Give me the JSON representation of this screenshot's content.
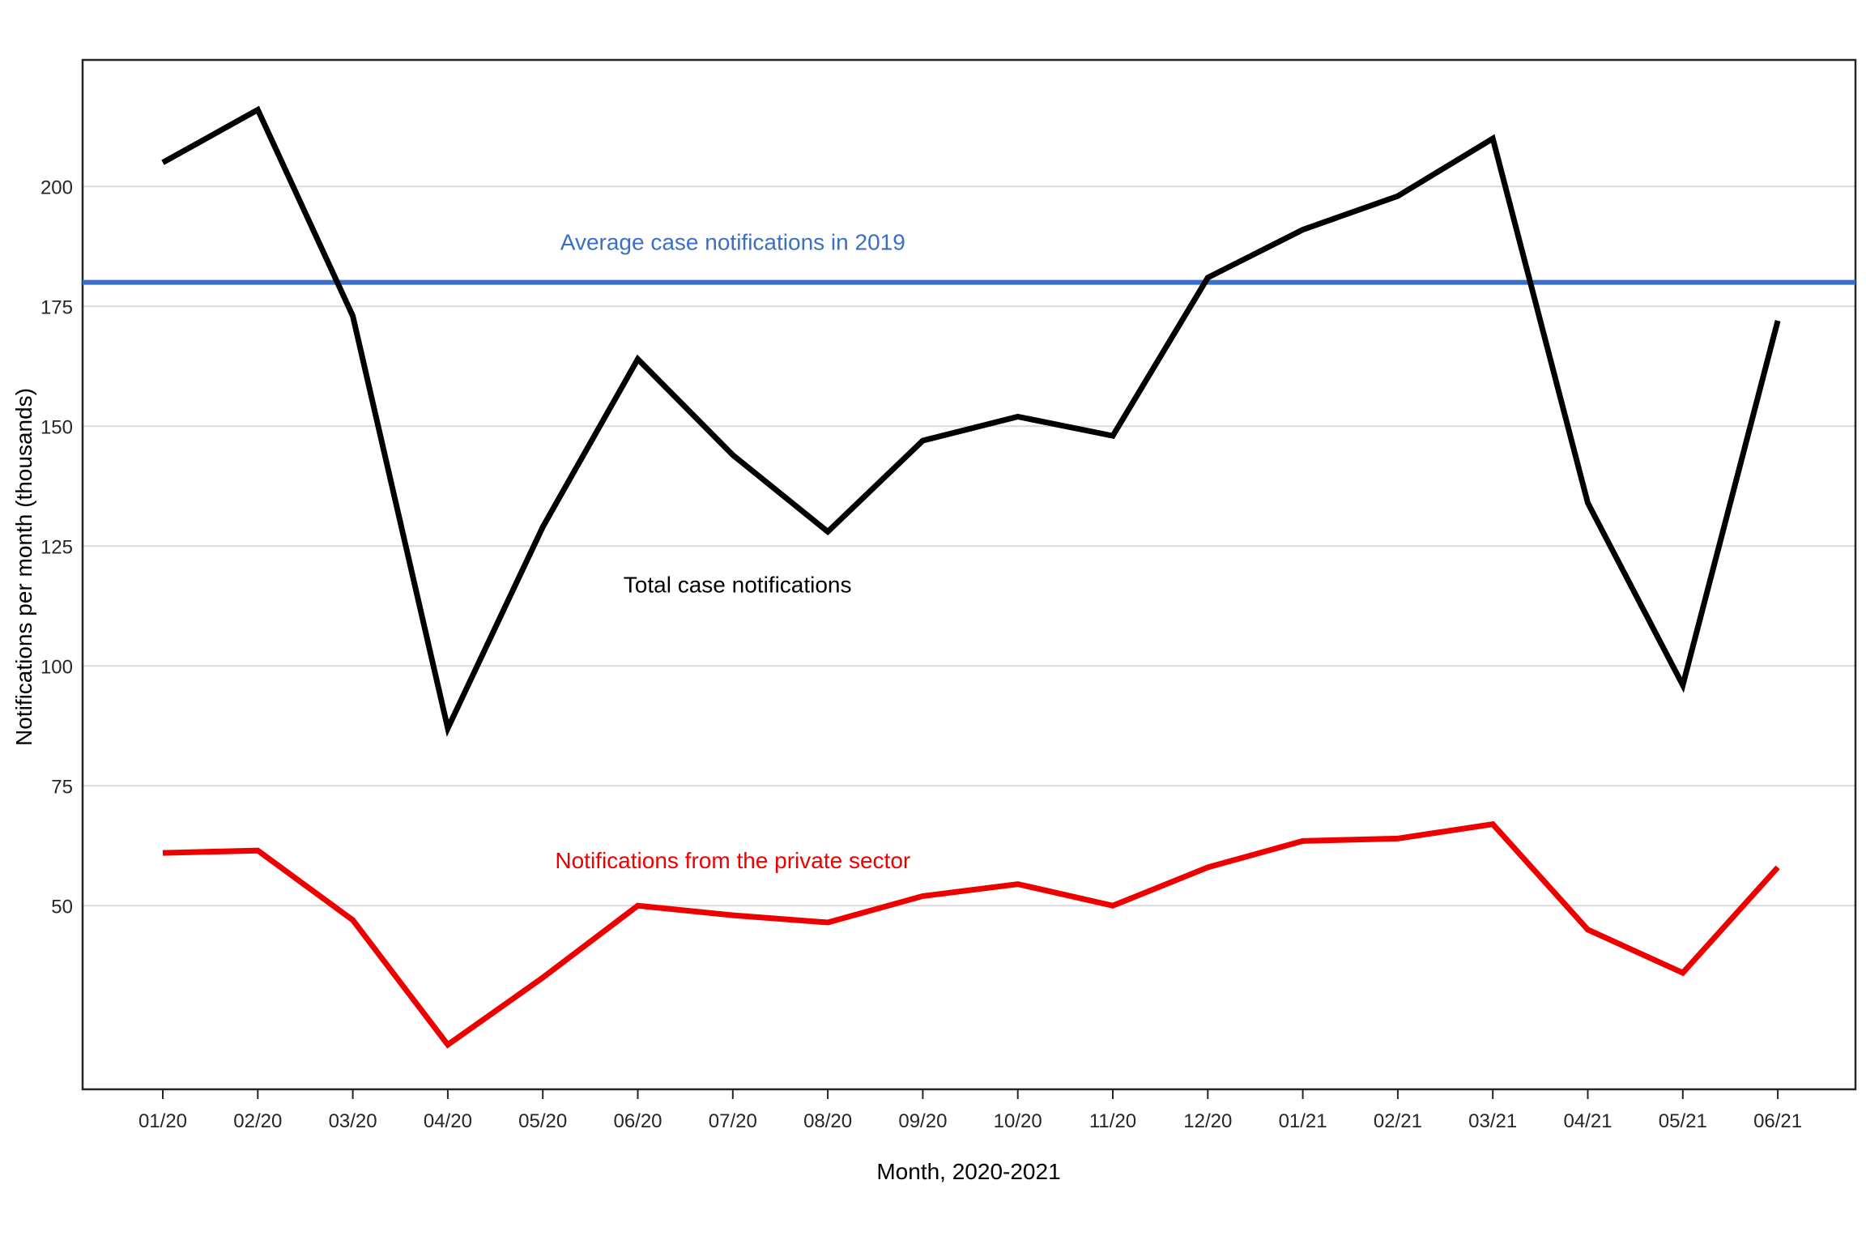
{
  "chart_data": {
    "type": "line",
    "title": "",
    "xlabel": "Month, 2020-2021",
    "ylabel": "Notifications per month (thousands)",
    "x_categories": [
      "01/20",
      "02/20",
      "03/20",
      "04/20",
      "05/20",
      "06/20",
      "07/20",
      "08/20",
      "09/20",
      "10/20",
      "11/20",
      "12/20",
      "01/21",
      "02/21",
      "03/21",
      "04/21",
      "05/21",
      "06/21"
    ],
    "y_ticks": [
      50,
      75,
      100,
      125,
      150,
      175,
      200
    ],
    "ylim": [
      11.7,
      226.4
    ],
    "grid": "horizontal",
    "legend_position": "inline-annotations",
    "series": [
      {
        "name": "Total case notifications",
        "color": "#000000",
        "values": [
          205,
          216,
          173,
          87,
          129,
          164,
          144,
          128,
          147,
          152,
          148,
          181,
          191,
          198,
          210,
          134,
          96,
          172
        ]
      },
      {
        "name": "Notifications from the private sector",
        "color": "#ee0000",
        "values": [
          61,
          61.5,
          47,
          21,
          35,
          50,
          48,
          46.5,
          52,
          54.5,
          50,
          58,
          63.5,
          64,
          67,
          45,
          36,
          58
        ]
      }
    ],
    "reference_line": {
      "label": "Average case notifications in 2019",
      "value": 180,
      "color": "#3a6fc5"
    },
    "annotations": [
      {
        "key": "avg-2019-label",
        "text": "Average case notifications in 2019",
        "color": "#3a6fc5",
        "x": 6.0,
        "y": 188.5
      },
      {
        "key": "total-label",
        "text": "Total case notifications",
        "color": "#000000",
        "x": 6.05,
        "y": 117
      },
      {
        "key": "private-label",
        "text": "Notifications from the private sector",
        "color": "#ee0000",
        "x": 6.0,
        "y": 59.5
      }
    ],
    "colors": {
      "grid": "#d9d9d9",
      "axis": "#262626",
      "tick_text": "#262626"
    }
  }
}
